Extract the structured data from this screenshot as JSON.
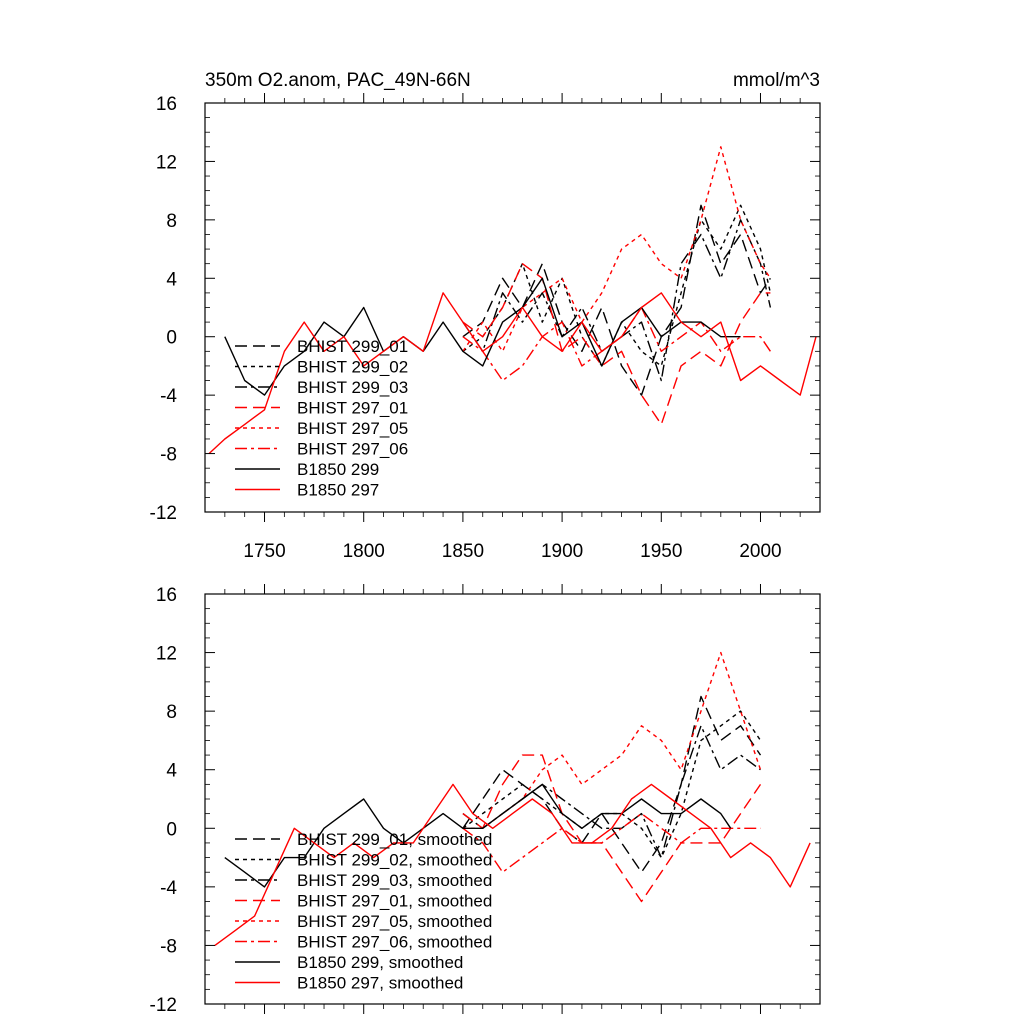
{
  "chart_data": [
    {
      "type": "line",
      "title_left": "350m O2.anom, PAC_49N-66N",
      "title_right": "mmol/m^3",
      "xlim": [
        1720,
        2030
      ],
      "ylim": [
        -12,
        16
      ],
      "xticks": [
        1750,
        1800,
        1850,
        1900,
        1950,
        2000
      ],
      "xtick_labels": [
        "1750",
        "1800",
        "1850",
        "1900",
        "1950",
        "2000"
      ],
      "yticks": [
        -12,
        -8,
        -4,
        0,
        4,
        8,
        12,
        16
      ],
      "ytick_labels": [
        "-12",
        "-8",
        "-4",
        "0",
        "4",
        "8",
        "12",
        "16"
      ],
      "legend": [
        "BHIST 299_01",
        "BHIST 299_02",
        "BHIST 299_03",
        "BHIST 297_01",
        "BHIST 297_05",
        "BHIST 297_06",
        "B1850 299",
        "B1850 297"
      ],
      "series": [
        {
          "name": "BHIST 299_01",
          "color": "#000000",
          "dash": "long",
          "x": [
            1850,
            1860,
            1870,
            1880,
            1890,
            1900,
            1910,
            1920,
            1930,
            1940,
            1950,
            1960,
            1970,
            1980,
            1990,
            2000,
            2005
          ],
          "values": [
            0,
            1,
            4,
            2,
            5,
            1,
            -1,
            2,
            -2,
            -4,
            0,
            2,
            9,
            5,
            7,
            3,
            4
          ]
        },
        {
          "name": "BHIST 299_02",
          "color": "#000000",
          "dash": "short",
          "x": [
            1850,
            1860,
            1870,
            1880,
            1890,
            1900,
            1910,
            1920,
            1930,
            1940,
            1950,
            1960,
            1970,
            1980,
            1990,
            2000,
            2005
          ],
          "values": [
            -1,
            0,
            2,
            5,
            1,
            4,
            0,
            -2,
            1,
            -1,
            -2,
            3,
            8,
            6,
            9,
            6,
            3
          ]
        },
        {
          "name": "BHIST 299_03",
          "color": "#000000",
          "dash": "dashdot",
          "x": [
            1850,
            1860,
            1870,
            1880,
            1890,
            1900,
            1910,
            1920,
            1930,
            1940,
            1950,
            1960,
            1970,
            1980,
            1990,
            2000,
            2005
          ],
          "values": [
            1,
            -1,
            3,
            1,
            3,
            0,
            2,
            -1,
            0,
            1,
            -3,
            5,
            7,
            4,
            8,
            5,
            2
          ]
        },
        {
          "name": "BHIST 297_01",
          "color": "#ff0000",
          "dash": "long",
          "x": [
            1850,
            1860,
            1870,
            1880,
            1890,
            1900,
            1910,
            1920,
            1930,
            1940,
            1950,
            1960,
            1970,
            1980,
            1990,
            2000,
            2005
          ],
          "values": [
            1,
            0,
            2,
            5,
            4,
            -1,
            0,
            -2,
            -1,
            -4,
            -6,
            -2,
            -1,
            -2,
            1,
            3,
            3
          ]
        },
        {
          "name": "BHIST 297_05",
          "color": "#ff0000",
          "dash": "short",
          "x": [
            1850,
            1860,
            1870,
            1880,
            1890,
            1900,
            1910,
            1920,
            1930,
            1940,
            1950,
            1960,
            1970,
            1980,
            1990,
            2000,
            2005
          ],
          "values": [
            -1,
            1,
            -1,
            2,
            3,
            4,
            1,
            3,
            6,
            7,
            5,
            4,
            8,
            13,
            8,
            5,
            4
          ]
        },
        {
          "name": "BHIST 297_06",
          "color": "#ff0000",
          "dash": "dashdot",
          "x": [
            1850,
            1860,
            1870,
            1880,
            1890,
            1900,
            1910,
            1920,
            1930,
            1940,
            1950,
            1960,
            1970,
            1980,
            1990,
            2000,
            2005
          ],
          "values": [
            0,
            -1,
            -3,
            -2,
            0,
            1,
            -2,
            -1,
            0,
            2,
            -1,
            0,
            1,
            -1,
            0,
            0,
            -1
          ]
        },
        {
          "name": "B1850 299",
          "color": "#000000",
          "dash": "solid",
          "x": [
            1730,
            1740,
            1750,
            1760,
            1770,
            1780,
            1790,
            1800,
            1810,
            1820,
            1830,
            1840,
            1850,
            1860,
            1870,
            1880,
            1890,
            1900,
            1910,
            1920,
            1930,
            1940,
            1950,
            1960,
            1970,
            1980,
            1990
          ],
          "values": [
            0,
            -3,
            -4,
            -2,
            -1,
            1,
            0,
            2,
            -1,
            0,
            -1,
            1,
            -1,
            -2,
            1,
            2,
            4,
            0,
            1,
            -2,
            1,
            2,
            0,
            1,
            1,
            0,
            0
          ]
        },
        {
          "name": "B1850 297",
          "color": "#ff0000",
          "dash": "solid",
          "x": [
            1722,
            1730,
            1740,
            1750,
            1760,
            1770,
            1780,
            1790,
            1800,
            1810,
            1820,
            1830,
            1840,
            1850,
            1860,
            1870,
            1880,
            1890,
            1900,
            1910,
            1920,
            1930,
            1940,
            1950,
            1960,
            1970,
            1980,
            1990,
            2000,
            2010,
            2020,
            2028
          ],
          "values": [
            -8,
            -7,
            -6,
            -5,
            -1,
            1,
            -1,
            0,
            -2,
            -1,
            0,
            -1,
            3,
            1,
            -1,
            0,
            2,
            0,
            -1,
            1,
            -1,
            0,
            2,
            3,
            1,
            0,
            1,
            -3,
            -2,
            -3,
            -4,
            0
          ]
        }
      ]
    },
    {
      "type": "line",
      "xlim": [
        1720,
        2030
      ],
      "ylim": [
        -12,
        16
      ],
      "xticks": [
        1750,
        1800,
        1850,
        1900,
        1950,
        2000
      ],
      "yticks": [
        -12,
        -8,
        -4,
        0,
        4,
        8,
        12,
        16
      ],
      "ytick_labels": [
        "-12",
        "-8",
        "-4",
        "0",
        "4",
        "8",
        "12",
        "16"
      ],
      "legend": [
        "BHIST 299_01, smoothed",
        "BHIST 299_02, smoothed",
        "BHIST 299_03, smoothed",
        "BHIST 297_01, smoothed",
        "BHIST 297_05, smoothed",
        "BHIST 297_06, smoothed",
        "B1850 299, smoothed",
        "B1850 297, smoothed"
      ],
      "series": [
        {
          "name": "BHIST 299_01, smoothed",
          "color": "#000000",
          "dash": "long",
          "x": [
            1850,
            1860,
            1870,
            1880,
            1890,
            1900,
            1910,
            1920,
            1930,
            1940,
            1950,
            1960,
            1970,
            1980,
            1990,
            2000
          ],
          "values": [
            0,
            2,
            4,
            3,
            2,
            0,
            -1,
            1,
            -1,
            -3,
            -1,
            3,
            9,
            6,
            7,
            5
          ]
        },
        {
          "name": "BHIST 299_02, smoothed",
          "color": "#000000",
          "dash": "short",
          "x": [
            1850,
            1860,
            1870,
            1880,
            1890,
            1900,
            1910,
            1920,
            1930,
            1940,
            1950,
            1960,
            1970,
            1980,
            1990,
            2000
          ],
          "values": [
            0,
            1,
            2,
            3,
            2,
            1,
            0,
            1,
            1,
            0,
            -2,
            1,
            6,
            7,
            8,
            6
          ]
        },
        {
          "name": "BHIST 299_03, smoothed",
          "color": "#000000",
          "dash": "dashdot",
          "x": [
            1850,
            1860,
            1870,
            1880,
            1890,
            1900,
            1910,
            1920,
            1930,
            1940,
            1950,
            1960,
            1970,
            1980,
            1990,
            2000
          ],
          "values": [
            1,
            0,
            1,
            2,
            3,
            2,
            1,
            0,
            0,
            1,
            -2,
            3,
            7,
            4,
            5,
            4
          ]
        },
        {
          "name": "BHIST 297_01, smoothed",
          "color": "#ff0000",
          "dash": "long",
          "x": [
            1850,
            1860,
            1870,
            1880,
            1890,
            1900,
            1910,
            1920,
            1930,
            1940,
            1950,
            1960,
            1970,
            1980,
            1990,
            2000
          ],
          "values": [
            1,
            0,
            3,
            5,
            5,
            1,
            -1,
            -1,
            -3,
            -5,
            -3,
            -1,
            -1,
            -1,
            1,
            3
          ]
        },
        {
          "name": "BHIST 297_05, smoothed",
          "color": "#ff0000",
          "dash": "short",
          "x": [
            1850,
            1860,
            1870,
            1880,
            1890,
            1900,
            1910,
            1920,
            1930,
            1940,
            1950,
            1960,
            1970,
            1980,
            1990,
            2000
          ],
          "values": [
            0,
            0,
            1,
            2,
            4,
            5,
            3,
            4,
            5,
            7,
            6,
            4,
            8,
            12,
            8,
            4
          ]
        },
        {
          "name": "BHIST 297_06, smoothed",
          "color": "#ff0000",
          "dash": "dashdot",
          "x": [
            1850,
            1860,
            1870,
            1880,
            1890,
            1900,
            1910,
            1920,
            1930,
            1940,
            1950,
            1960,
            1970,
            1980,
            1990,
            2000
          ],
          "values": [
            0,
            -1,
            -3,
            -2,
            -1,
            0,
            -1,
            -1,
            0,
            1,
            0,
            -1,
            0,
            0,
            0,
            0
          ]
        },
        {
          "name": "B1850 299, smoothed",
          "color": "#000000",
          "dash": "solid",
          "x": [
            1730,
            1740,
            1750,
            1760,
            1770,
            1780,
            1790,
            1800,
            1810,
            1820,
            1830,
            1840,
            1850,
            1860,
            1870,
            1880,
            1890,
            1900,
            1910,
            1920,
            1930,
            1940,
            1950,
            1960,
            1970,
            1980,
            1985
          ],
          "values": [
            -2,
            -3,
            -4,
            -2,
            -2,
            0,
            1,
            2,
            0,
            -1,
            0,
            1,
            0,
            0,
            1,
            2,
            3,
            1,
            0,
            1,
            1,
            2,
            1,
            1,
            2,
            1,
            0
          ]
        },
        {
          "name": "B1850 297, smoothed",
          "color": "#ff0000",
          "dash": "solid",
          "x": [
            1725,
            1735,
            1745,
            1755,
            1765,
            1775,
            1785,
            1795,
            1805,
            1815,
            1825,
            1835,
            1845,
            1855,
            1865,
            1875,
            1885,
            1895,
            1905,
            1915,
            1925,
            1935,
            1945,
            1955,
            1965,
            1975,
            1985,
            1995,
            2005,
            2015,
            2025
          ],
          "values": [
            -8,
            -7,
            -6,
            -3,
            0,
            -1,
            -2,
            -1,
            -2,
            -1,
            -1,
            1,
            3,
            1,
            0,
            1,
            2,
            1,
            -1,
            -1,
            0,
            2,
            3,
            2,
            1,
            0,
            -2,
            -1,
            -2,
            -4,
            -1
          ]
        }
      ]
    }
  ]
}
